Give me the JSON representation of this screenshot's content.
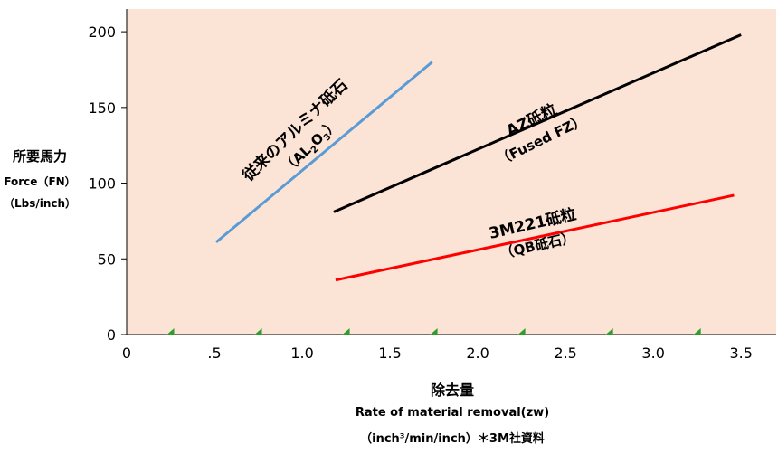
{
  "chart_data": {
    "type": "line",
    "ylabel_ja": "所要馬力",
    "ylabel_en": "Force（FN）",
    "ylabel_unit": "（Lbs/inch）",
    "xlabel_ja": "除去量",
    "xlabel_en": "Rate of material removal(zw)",
    "xlabel_unit": "（inch³/min/inch）＊3M社資料",
    "xlim": [
      0,
      3.7
    ],
    "ylim": [
      0,
      215
    ],
    "x_ticks": [
      0,
      0.5,
      1.0,
      1.5,
      2.0,
      2.5,
      3.0,
      3.5
    ],
    "x_tick_labels": [
      "0",
      ".5",
      "1.0",
      "1.5",
      "2.0",
      "2.5",
      "3.0",
      "3.5"
    ],
    "y_ticks": [
      0,
      50,
      100,
      150,
      200
    ],
    "y_tick_labels": [
      "0",
      "50",
      "100",
      "150",
      "200"
    ],
    "series": [
      {
        "name": "従来のアルミナ砥石",
        "sublabel_pre": "（AL",
        "sublabel_sub1": "2",
        "sublabel_mid": "O",
        "sublabel_sub2": "3",
        "sublabel_post": "）",
        "color": "#5b9bd5",
        "x": [
          0.51,
          1.74
        ],
        "y": [
          61,
          180
        ]
      },
      {
        "name": "AZ砥粒",
        "sublabel": "（Fused FZ）",
        "color": "#000000",
        "x": [
          1.18,
          3.5
        ],
        "y": [
          81,
          198
        ]
      },
      {
        "name": "3M221砥粒",
        "sublabel": "（QB砥石）",
        "color": "#ff0000",
        "x": [
          1.19,
          3.46
        ],
        "y": [
          36,
          92
        ]
      }
    ],
    "colors": {
      "plot_bg": "#fbe4d6",
      "tick_marker": "#2e9d2e"
    },
    "grid": false
  }
}
